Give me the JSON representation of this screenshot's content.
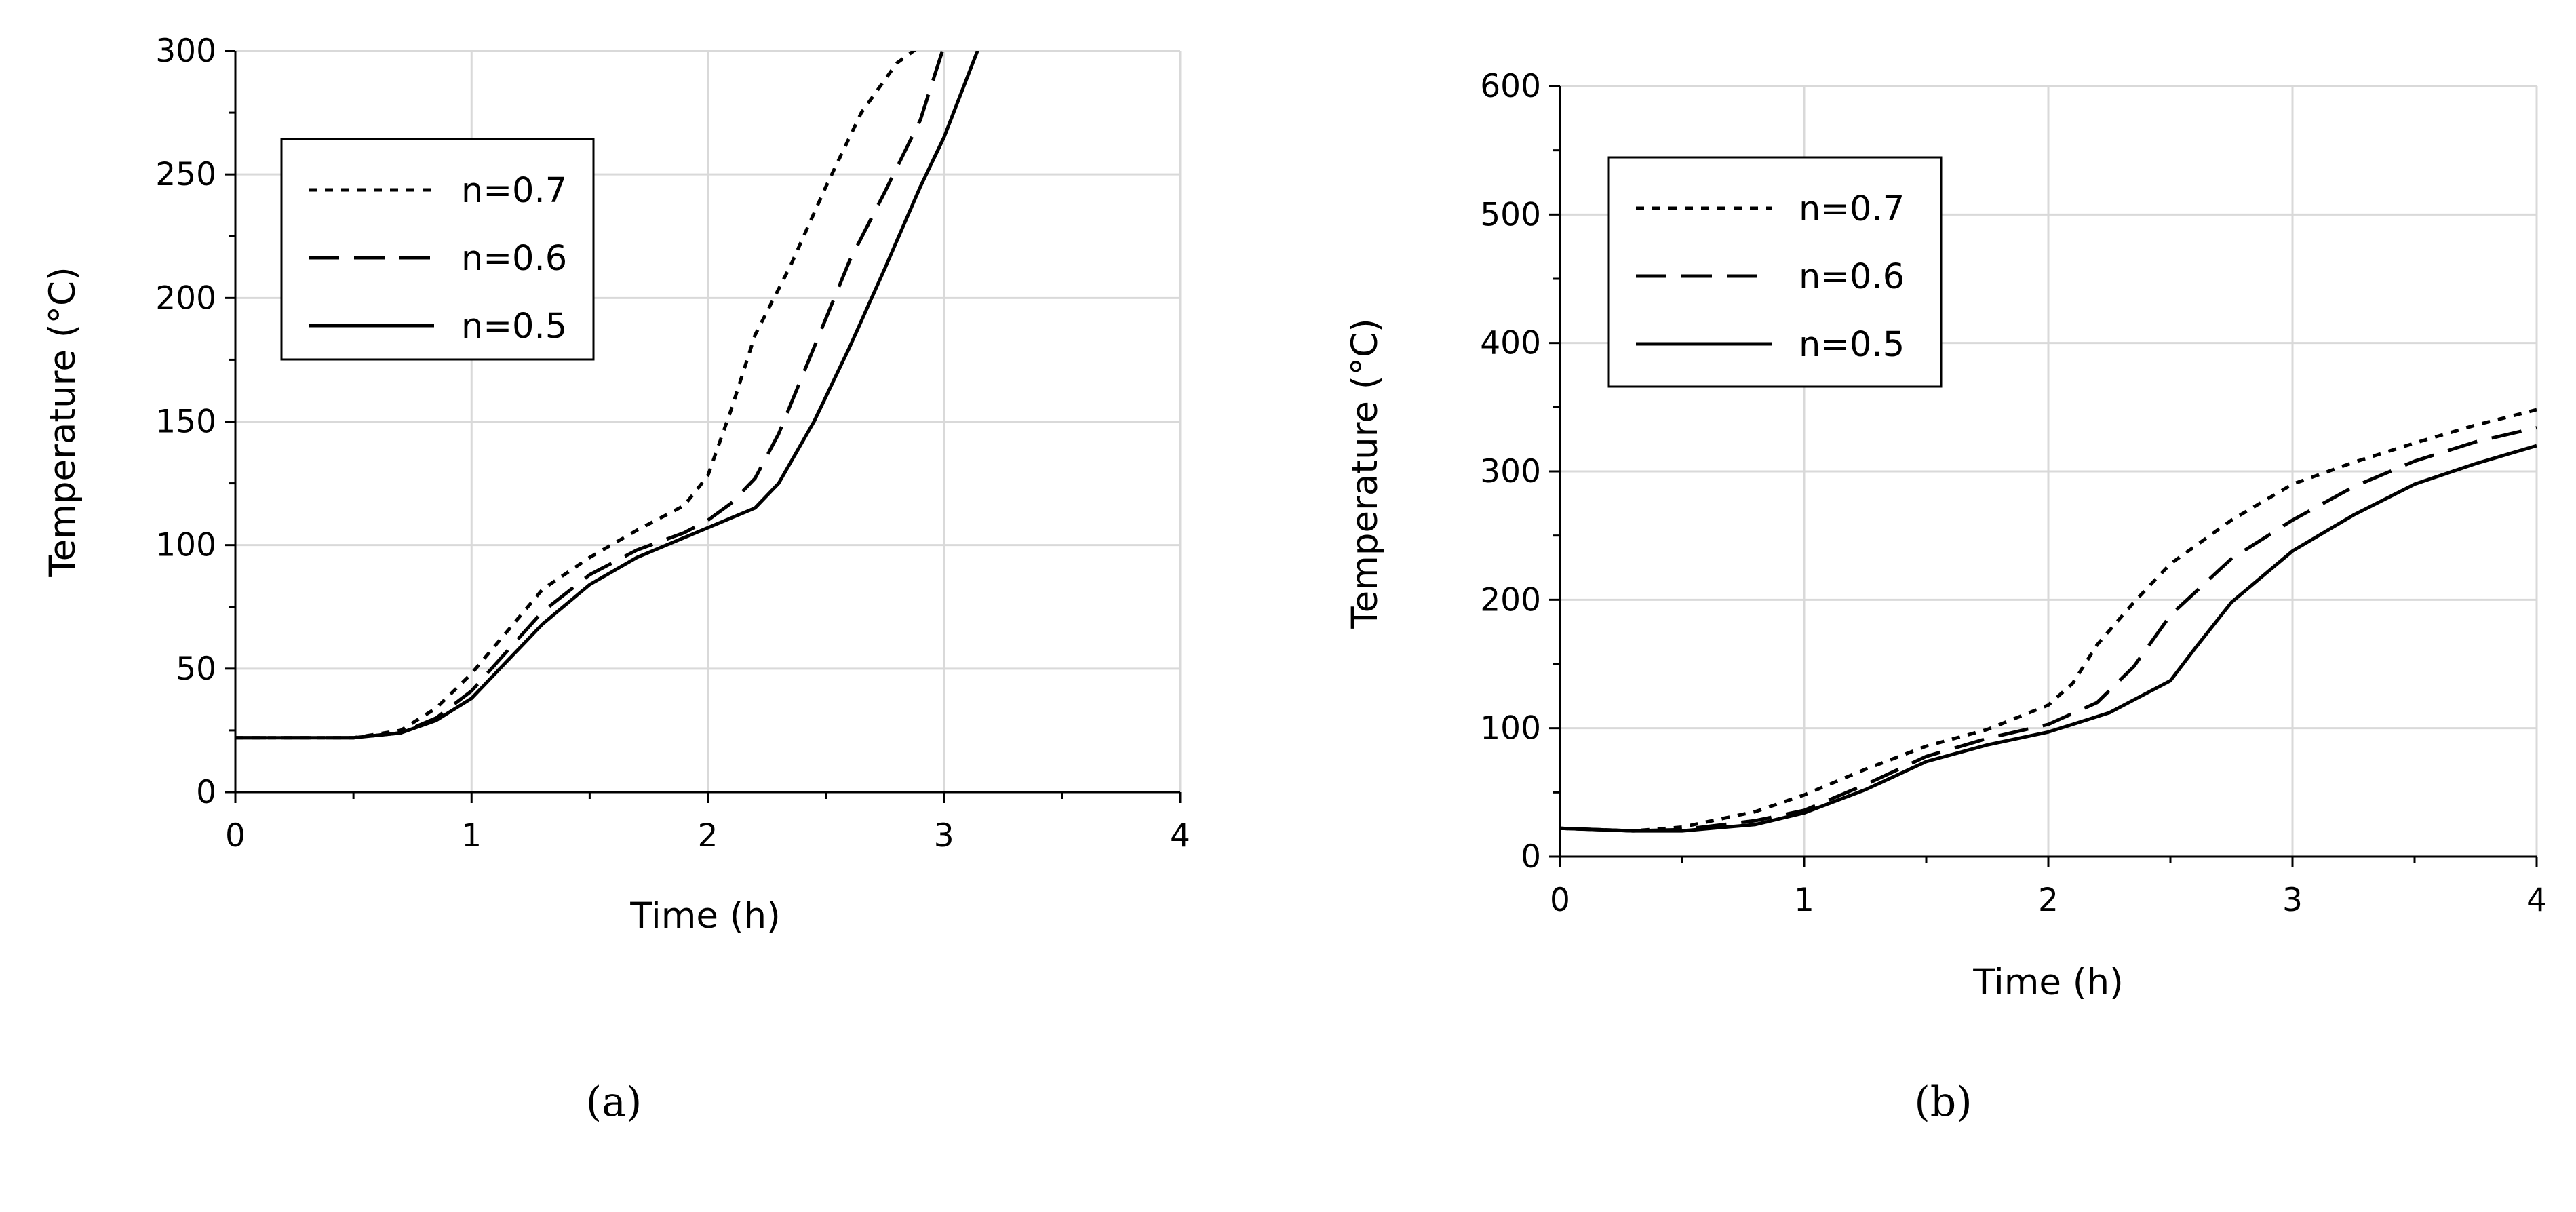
{
  "chart_data": [
    {
      "type": "line",
      "panel_label": "(a)",
      "xlabel": "Time (h)",
      "ylabel": "Temperature (°C)",
      "xlim": [
        0,
        4
      ],
      "ylim": [
        0,
        300
      ],
      "xticks": [
        0,
        1,
        2,
        3,
        4
      ],
      "yticks": [
        0,
        50,
        100,
        150,
        200,
        250,
        300
      ],
      "grid": true,
      "legend_position": "top-left",
      "series": [
        {
          "name": "n=0.7",
          "dash": "dotted",
          "x": [
            0,
            0.5,
            0.7,
            0.85,
            1.0,
            1.15,
            1.3,
            1.5,
            1.7,
            1.9,
            2.0,
            2.1,
            2.2,
            2.35,
            2.5,
            2.65,
            2.8,
            2.9
          ],
          "y": [
            22,
            22,
            25,
            34,
            48,
            65,
            82,
            95,
            106,
            116,
            128,
            155,
            185,
            213,
            245,
            275,
            295,
            302
          ]
        },
        {
          "name": "n=0.6",
          "dash": "dashed",
          "x": [
            0,
            0.5,
            0.7,
            0.85,
            1.0,
            1.15,
            1.3,
            1.5,
            1.7,
            1.9,
            2.0,
            2.1,
            2.2,
            2.3,
            2.45,
            2.6,
            2.75,
            2.9,
            3.0
          ],
          "y": [
            22,
            22,
            24,
            30,
            41,
            57,
            73,
            88,
            98,
            105,
            110,
            117,
            127,
            145,
            180,
            215,
            243,
            272,
            302
          ]
        },
        {
          "name": "n=0.5",
          "dash": "solid",
          "x": [
            0,
            0.5,
            0.7,
            0.85,
            1.0,
            1.15,
            1.3,
            1.5,
            1.7,
            1.9,
            2.0,
            2.1,
            2.2,
            2.3,
            2.45,
            2.6,
            2.75,
            2.9,
            3.0,
            3.15
          ],
          "y": [
            22,
            22,
            24,
            29,
            38,
            53,
            68,
            84,
            95,
            103,
            107,
            111,
            115,
            125,
            150,
            180,
            212,
            245,
            265,
            302
          ]
        }
      ]
    },
    {
      "type": "line",
      "panel_label": "(b)",
      "xlabel": "Time (h)",
      "ylabel": "Temperature (°C)",
      "xlim": [
        0,
        4
      ],
      "ylim": [
        0,
        600
      ],
      "xticks": [
        0,
        1,
        2,
        3,
        4
      ],
      "yticks": [
        0,
        100,
        200,
        300,
        400,
        500,
        600
      ],
      "grid": true,
      "legend_position": "top-left",
      "series": [
        {
          "name": "n=0.7",
          "dash": "dotted",
          "x": [
            0,
            0.3,
            0.5,
            0.8,
            1.0,
            1.25,
            1.5,
            1.75,
            2.0,
            2.1,
            2.2,
            2.35,
            2.5,
            2.75,
            3.0,
            3.25,
            3.5,
            3.75,
            4.0
          ],
          "y": [
            22,
            20,
            23,
            35,
            48,
            68,
            86,
            99,
            118,
            135,
            165,
            198,
            228,
            262,
            290,
            307,
            322,
            336,
            348
          ]
        },
        {
          "name": "n=0.6",
          "dash": "dashed",
          "x": [
            0,
            0.3,
            0.5,
            0.8,
            1.0,
            1.25,
            1.5,
            1.75,
            2.0,
            2.2,
            2.35,
            2.5,
            2.75,
            3.0,
            3.25,
            3.5,
            3.75,
            4.0
          ],
          "y": [
            22,
            20,
            21,
            28,
            36,
            56,
            78,
            92,
            103,
            120,
            148,
            188,
            232,
            262,
            288,
            308,
            323,
            334
          ]
        },
        {
          "name": "n=0.5",
          "dash": "solid",
          "x": [
            0,
            0.3,
            0.5,
            0.8,
            1.0,
            1.25,
            1.5,
            1.75,
            2.0,
            2.25,
            2.5,
            2.6,
            2.75,
            3.0,
            3.25,
            3.5,
            3.75,
            4.0
          ],
          "y": [
            22,
            20,
            20,
            25,
            34,
            52,
            74,
            87,
            97,
            112,
            137,
            162,
            198,
            238,
            266,
            290,
            306,
            320
          ]
        }
      ]
    }
  ]
}
